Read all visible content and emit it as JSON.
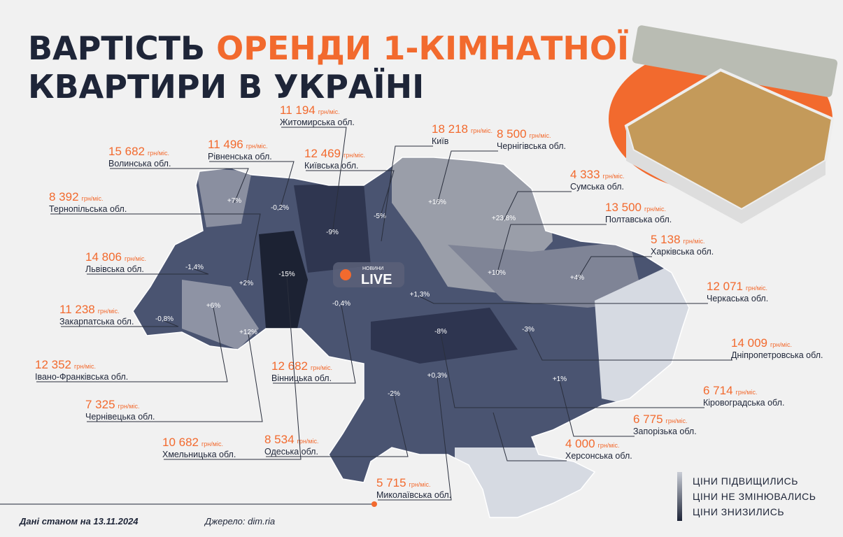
{
  "title": {
    "part1": "ВАРТІСТЬ",
    "part2": "ОРЕНДИ 1-КІМНАТНОЇ",
    "line2": "КВАРТИРИ В УКРАЇНІ"
  },
  "unit": "грн/міс.",
  "logo": {
    "small": "НОВИНИ",
    "big": "LIVE"
  },
  "regions": [
    {
      "name": "Волинська обл.",
      "price": "15 682",
      "change": "+7%"
    },
    {
      "name": "Рівненська обл.",
      "price": "11 496",
      "change": "-0,2%"
    },
    {
      "name": "Житомирська обл.",
      "price": "11 194",
      "change": "-9%"
    },
    {
      "name": "Київська обл.",
      "price": "12 469",
      "change": "-5%"
    },
    {
      "name": "Київ",
      "price": "18 218"
    },
    {
      "name": "Чернігівська обл.",
      "price": "8 500",
      "change": "+16%"
    },
    {
      "name": "Сумська обл.",
      "price": "4 333",
      "change": "+23,8%"
    },
    {
      "name": "Полтавська обл.",
      "price": "13 500",
      "change": "+10%"
    },
    {
      "name": "Харківська обл.",
      "price": "5 138",
      "change": "+4%"
    },
    {
      "name": "Черкаська обл.",
      "price": "12 071",
      "change": "+1,3%"
    },
    {
      "name": "Дніпропетровська обл.",
      "price": "14 009",
      "change": "-3%"
    },
    {
      "name": "Кіровоградська обл.",
      "price": "6 714",
      "change": "-8%"
    },
    {
      "name": "Запорізька обл.",
      "price": "6 775",
      "change": "+1%"
    },
    {
      "name": "Херсонська обл.",
      "price": "4 000"
    },
    {
      "name": "Миколаївська обл.",
      "price": "5 715",
      "change": "+0,3%"
    },
    {
      "name": "Одеська обл.",
      "price": "8 534",
      "change": "-2%"
    },
    {
      "name": "Вінницька обл.",
      "price": "12 682",
      "change": "-0,4%"
    },
    {
      "name": "Хмельницька обл.",
      "price": "10 682",
      "change": "-15%"
    },
    {
      "name": "Чернівецька обл.",
      "price": "7 325",
      "change": "+12%"
    },
    {
      "name": "Івано-Франківська обл.",
      "price": "12 352",
      "change": "+6%"
    },
    {
      "name": "Закарпатська обл.",
      "price": "11 238",
      "change": "-0,8%"
    },
    {
      "name": "Львівська обл.",
      "price": "14 806",
      "change": "-1,4%"
    },
    {
      "name": "Тернопільська обл.",
      "price": "8 392",
      "change": "+2%"
    }
  ],
  "legend": [
    "ЦІНИ ПІДВИЩИЛИСЬ",
    "ЦІНИ НЕ ЗМІНЮВАЛИСЬ",
    "ЦІНИ ЗНИЗИЛИСЬ"
  ],
  "footer": {
    "date": "Дані станом на 13.11.2024",
    "source": "Джерело: dim.ria"
  }
}
